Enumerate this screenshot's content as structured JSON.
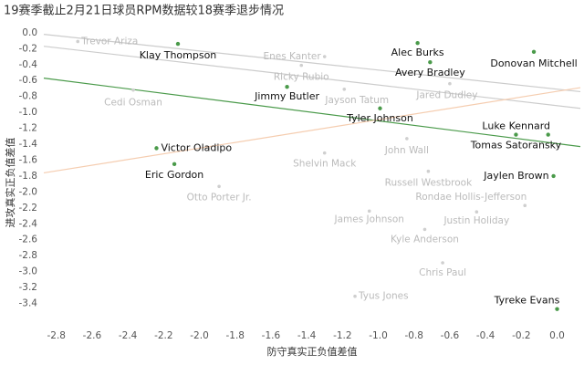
{
  "chart_data": {
    "type": "scatter",
    "title": "19赛季截止2月21日球员RPM数据较18赛季退步情况",
    "x_label": "防守真实正负值差值",
    "y_label": "进攻真实正负值差值",
    "highlight_color": "#4a9a4a",
    "muted_color": "#cfcfcf",
    "xlim": [
      -2.87,
      0.13
    ],
    "ylim": [
      -3.6,
      0.09
    ],
    "xticks": [
      -2.8,
      -2.6,
      -2.4,
      -2.2,
      {
        "value": -2.0,
        "label": "-2.0"
      },
      -1.8,
      -1.6,
      -1.4,
      -1.2,
      {
        "value": -1.0,
        "label": "-1.0"
      },
      -0.8,
      -0.6,
      -0.4,
      -0.2,
      {
        "value": 0.0,
        "label": "0.0"
      }
    ],
    "yticks": [
      {
        "value": 0.0,
        "label": "0.0"
      },
      -0.2,
      -0.4,
      -0.6,
      -0.8,
      {
        "value": -1.0,
        "label": "-1.0"
      },
      -1.2,
      -1.4,
      -1.6,
      -1.8,
      {
        "value": -2.0,
        "label": "-2.0"
      },
      -2.2,
      -2.4,
      -2.6,
      -2.8,
      {
        "value": -3.0,
        "label": "-3.0"
      },
      -3.2,
      -3.4
    ],
    "points": [
      {
        "label": "Klay Thompson",
        "x": -2.12,
        "y": -0.14,
        "highlight": true
      },
      {
        "label": "Alec Burks",
        "x": -0.78,
        "y": -0.13,
        "highlight": true
      },
      {
        "label": "Donovan Mitchell",
        "x": -0.13,
        "y": -0.24,
        "highlight": true
      },
      {
        "label": "Avery Bradley",
        "x": -0.71,
        "y": -0.37,
        "highlight": true
      },
      {
        "label": "Jimmy Butler",
        "x": -1.51,
        "y": -0.68,
        "highlight": true
      },
      {
        "label": "Tyler Johnson",
        "x": -0.99,
        "y": -0.95,
        "highlight": true
      },
      {
        "label": "Luke Kennard",
        "x": -0.05,
        "y": -1.28,
        "highlight": true
      },
      {
        "label": "Tomas Satoransky",
        "x": -0.23,
        "y": -1.28,
        "highlight": true
      },
      {
        "label": "Victor Oladipo",
        "x": -2.24,
        "y": -1.45,
        "highlight": true
      },
      {
        "label": "Eric Gordon",
        "x": -2.14,
        "y": -1.65,
        "highlight": true
      },
      {
        "label": "Jaylen Brown",
        "x": -0.02,
        "y": -1.8,
        "highlight": true
      },
      {
        "label": "Tyreke Evans",
        "x": 0.0,
        "y": -3.47,
        "highlight": true
      },
      {
        "label": "Trevor Ariza",
        "x": -2.68,
        "y": -0.11,
        "highlight": false
      },
      {
        "label": "Enes Kanter",
        "x": -1.3,
        "y": -0.3,
        "highlight": false
      },
      {
        "label": "Ricky Rubio",
        "x": -1.43,
        "y": -0.41,
        "highlight": false
      },
      {
        "label": "Cedi Osman",
        "x": -2.37,
        "y": -0.72,
        "highlight": false
      },
      {
        "label": "Jayson Tatum",
        "x": -1.19,
        "y": -0.71,
        "highlight": false
      },
      {
        "label": "Jared Dudley",
        "x": -0.6,
        "y": -0.64,
        "highlight": false
      },
      {
        "label": "John Wall",
        "x": -0.84,
        "y": -1.33,
        "highlight": false
      },
      {
        "label": "Shelvin Mack",
        "x": -1.3,
        "y": -1.51,
        "highlight": false
      },
      {
        "label": "Otto Porter Jr.",
        "x": -1.89,
        "y": -1.93,
        "highlight": false
      },
      {
        "label": "Russell Westbrook",
        "x": -0.72,
        "y": -1.74,
        "highlight": false
      },
      {
        "label": "Rondae Hollis-Jefferson",
        "x": -0.18,
        "y": -2.17,
        "highlight": false
      },
      {
        "label": "James Johnson",
        "x": -1.05,
        "y": -2.24,
        "highlight": false
      },
      {
        "label": "Justin Holiday",
        "x": -0.45,
        "y": -2.25,
        "highlight": false
      },
      {
        "label": "Kyle Anderson",
        "x": -0.74,
        "y": -2.47,
        "highlight": false
      },
      {
        "label": "Chris Paul",
        "x": -0.64,
        "y": -2.89,
        "highlight": false
      },
      {
        "label": "Tyus Jones",
        "x": -1.13,
        "y": -3.31,
        "highlight": false
      }
    ],
    "trend_lines": [
      {
        "color": "#4a9a4a",
        "x": [
          -2.87,
          0.13
        ],
        "y": [
          -0.57,
          -1.43
        ]
      },
      {
        "color": "#cccccc",
        "x": [
          -2.87,
          0.13
        ],
        "y": [
          -0.02,
          -0.74
        ]
      },
      {
        "color": "#cccccc",
        "x": [
          -2.87,
          0.13
        ],
        "y": [
          -0.17,
          -0.95
        ]
      },
      {
        "color": "#f5cdb0",
        "x": [
          -2.87,
          0.13
        ],
        "y": [
          -1.76,
          -0.69
        ]
      }
    ]
  }
}
